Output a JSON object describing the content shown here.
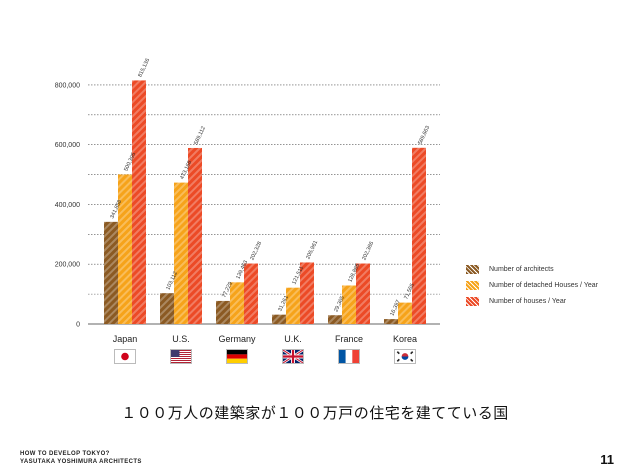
{
  "chart_data": {
    "type": "bar",
    "categories": [
      "Japan",
      "U.S.",
      "Germany",
      "U.K.",
      "France",
      "Korea"
    ],
    "series": [
      {
        "name": "Number of architects",
        "color": "#8b5a23",
        "values": [
          341858,
          103112,
          77229,
          31261,
          29365,
          16397
        ],
        "labels": [
          "341,858",
          "103,112",
          "77,229",
          "31,261",
          "29,365",
          "16,397"
        ]
      },
      {
        "name": "Number of detached Houses / Year",
        "color": "#f6a31a",
        "values": [
          500395,
          473168,
          139463,
          121511,
          128885,
          71555
        ],
        "labels": [
          "500,395",
          "473,168",
          "139,463",
          "121,511",
          "128,885",
          "71,555"
        ]
      },
      {
        "name": "Number of houses / Year",
        "color": "#ec4a26",
        "values": [
          815136,
          589112,
          202328,
          205961,
          202386,
          589663
        ],
        "labels": [
          "815,136",
          "589,112",
          "202,328",
          "205,961",
          "202,386",
          "589,663"
        ]
      }
    ],
    "y_ticks": [
      {
        "value": 0,
        "label": "0"
      },
      {
        "value": 200000,
        "label": "200,000"
      },
      {
        "value": 400000,
        "label": "400,000"
      },
      {
        "value": 600000,
        "label": "600,000"
      },
      {
        "value": 800000,
        "label": "800,000"
      }
    ],
    "ylim": [
      0,
      850000
    ],
    "grid": true,
    "legend_position": "right"
  },
  "flags": [
    "japan-flag-icon",
    "us-flag-icon",
    "germany-flag-icon",
    "uk-flag-icon",
    "france-flag-icon",
    "korea-flag-icon"
  ],
  "caption": "１００万人の建築家が１００万戸の住宅を建てている国",
  "footer": {
    "line1": "HOW TO DEVELOP TOKYO?",
    "line2": "YASUTAKA YOSHIMURA ARCHITECTS"
  },
  "page_number": "11"
}
